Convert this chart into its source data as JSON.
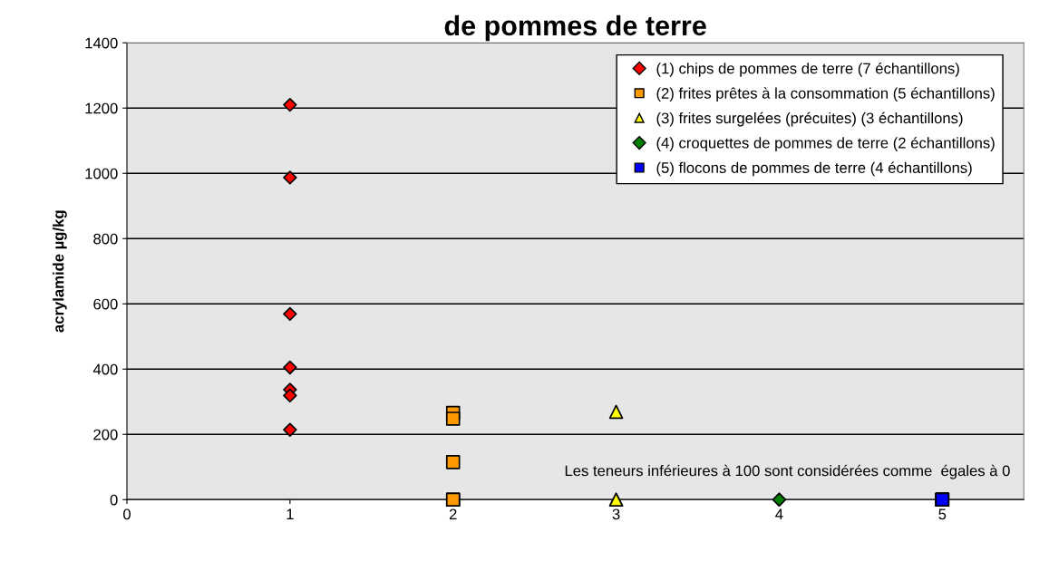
{
  "chart_data": {
    "type": "scatter",
    "title": "de pommes de terre",
    "ylabel": "acrylamide µg/kg",
    "xlim": [
      0,
      5.5
    ],
    "xticks": [
      0,
      1,
      2,
      3,
      4,
      5
    ],
    "ylim": [
      0,
      1400
    ],
    "yticks": [
      0,
      200,
      400,
      600,
      800,
      1000,
      1200,
      1400
    ],
    "grid": "y",
    "legend": "top right",
    "annotations": [
      "Les teneurs inférieures à 100 sont considérées comme  égales à 0"
    ],
    "series": [
      {
        "name": "(1) chips de pommes de terre (7 échantillons)",
        "color": "#ff0000",
        "marker": "diamond",
        "x": [
          1,
          1,
          1,
          1,
          1,
          1,
          1
        ],
        "values": [
          1210,
          987,
          569,
          405,
          337,
          319,
          214
        ]
      },
      {
        "name": "(2) frites prêtes à la consommation (5 échantillons)",
        "color": "#ff9900",
        "marker": "square",
        "x": [
          2,
          2,
          2,
          2,
          2
        ],
        "values": [
          266,
          248,
          115,
          0,
          0
        ]
      },
      {
        "name": "(3) frites surgelées (précuites) (3 échantillons)",
        "color": "#ffff00",
        "marker": "triangle",
        "x": [
          3,
          3,
          3
        ],
        "values": [
          269,
          0,
          0
        ]
      },
      {
        "name": "(4) croquettes de pommes de terre (2 échantillons)",
        "color": "#008000",
        "marker": "diamond",
        "x": [
          4,
          4
        ],
        "values": [
          0,
          0
        ]
      },
      {
        "name": "(5) flocons de pommes de terre (4 échantillons)",
        "color": "#0000ff",
        "marker": "square",
        "x": [
          5,
          5,
          5,
          5
        ],
        "values": [
          0,
          0,
          0,
          0
        ]
      }
    ]
  }
}
